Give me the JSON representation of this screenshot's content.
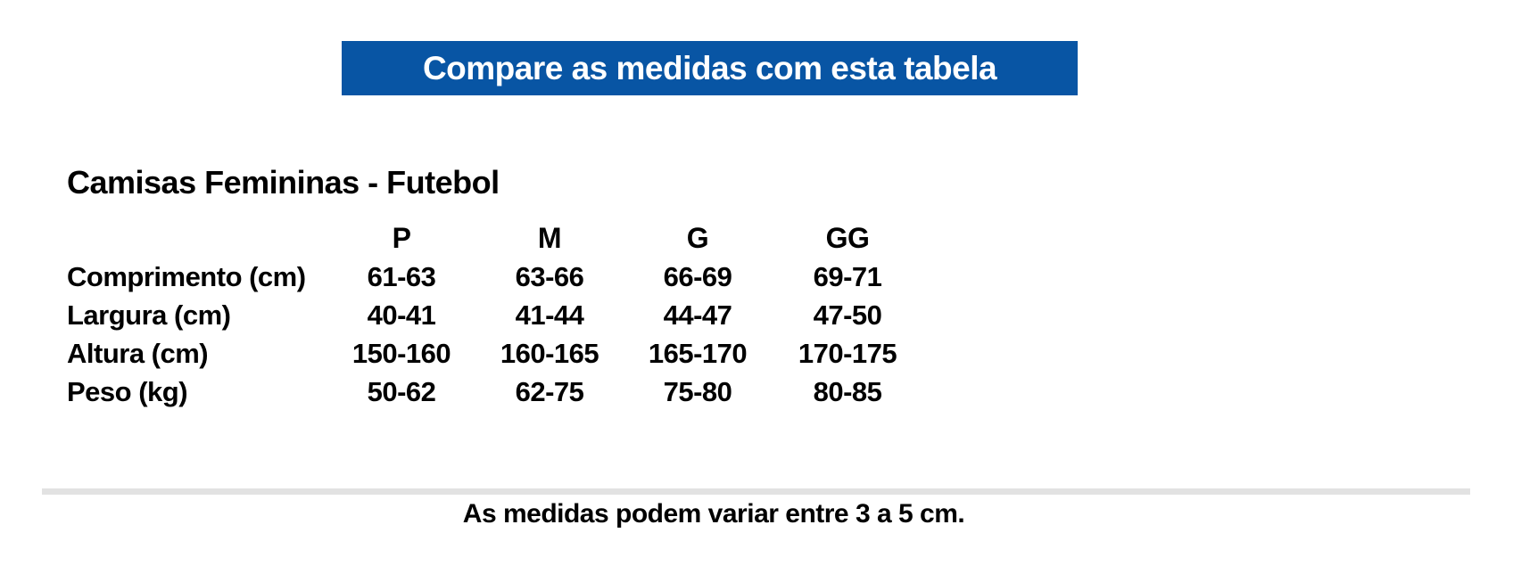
{
  "banner": {
    "label": "Compare as medidas com esta tabela",
    "bg_color": "#0855A4",
    "text_color": "#FFFFFF"
  },
  "section": {
    "title": "Camisas Femininas - Futebol"
  },
  "size_table": {
    "columns": [
      "P",
      "M",
      "G",
      "GG"
    ],
    "rows": [
      {
        "label": "Comprimento (cm)",
        "values": [
          "61-63",
          "63-66",
          "66-69",
          "69-71"
        ]
      },
      {
        "label": "Largura (cm)",
        "values": [
          "40-41",
          "41-44",
          "44-47",
          "47-50"
        ]
      },
      {
        "label": "Altura (cm)",
        "values": [
          "150-160",
          "160-165",
          "165-170",
          "170-175"
        ]
      },
      {
        "label": "Peso (kg)",
        "values": [
          "50-62",
          "62-75",
          "75-80",
          "80-85"
        ]
      }
    ]
  },
  "footer": {
    "note": "As medidas podem variar entre 3 a 5 cm."
  }
}
